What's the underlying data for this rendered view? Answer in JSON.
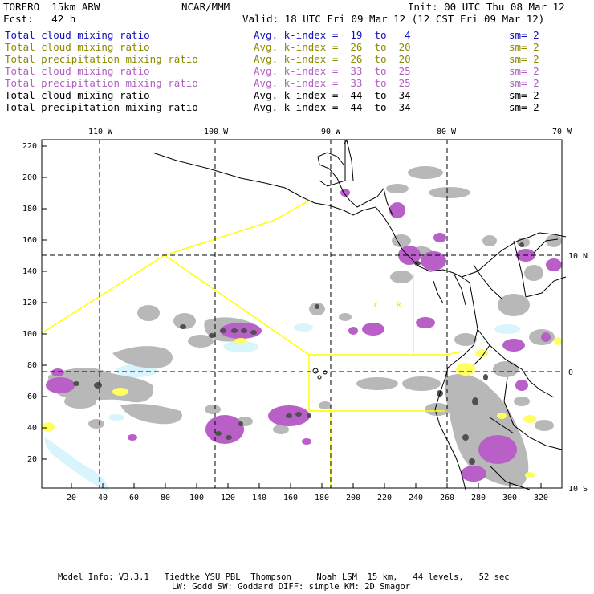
{
  "header": {
    "model": "TORERO  15km ARW",
    "org": "NCAR/MMM",
    "init": "Init: 00 UTC Thu 08 Mar 12",
    "fcst": "Fcst:   42 h",
    "valid": "Valid: 18 UTC Fri 09 Mar 12 (12 CST Fri 09 Mar 12)"
  },
  "legend": [
    {
      "field": "Total cloud mixing ratio",
      "index": "Avg. k-index =  19  to   4",
      "sm": "sm= 2",
      "color": "#1010c0"
    },
    {
      "field": "Total cloud mixing ratio",
      "index": "Avg. k-index =  26  to  20",
      "sm": "sm= 2",
      "color": "#8a8a00"
    },
    {
      "field": "Total precipitation mixing ratio",
      "index": "Avg. k-index =  26  to  20",
      "sm": "sm= 2",
      "color": "#8a8a00"
    },
    {
      "field": "Total cloud mixing ratio",
      "index": "Avg. k-index =  33  to  25",
      "sm": "sm= 2",
      "color": "#b060c0"
    },
    {
      "field": "Total precipitation mixing ratio",
      "index": "Avg. k-index =  33  to  25",
      "sm": "sm= 2",
      "color": "#b060c0"
    },
    {
      "field": "Total cloud mixing ratio",
      "index": "Avg. k-index =  44  to  34",
      "sm": "sm= 2",
      "color": "#000000"
    },
    {
      "field": "Total precipitation mixing ratio",
      "index": "Avg. k-index =  44  to  34",
      "sm": "sm= 2",
      "color": "#000000"
    }
  ],
  "map": {
    "lon_labels": [
      "110 W",
      "100 W",
      "90 W",
      "80 W",
      "70 W"
    ],
    "lat_labels": [
      "10 N",
      "0",
      "10 S"
    ],
    "y_ticks": [
      "220",
      "200",
      "180",
      "160",
      "140",
      "120",
      "100",
      "80",
      "60",
      "40",
      "20"
    ],
    "x_ticks": [
      "20",
      "40",
      "60",
      "80",
      "100",
      "120",
      "140",
      "160",
      "180",
      "200",
      "220",
      "240",
      "260",
      "280",
      "300",
      "320"
    ],
    "region_labels": [
      "1",
      "C",
      "R"
    ],
    "colors": {
      "grey": "#b8b8b8",
      "dark": "#505050",
      "purple": "#b860c8",
      "yellow": "#ffff60",
      "cyan": "#d8f4fc",
      "boundary": "#ffff00"
    }
  },
  "footer": {
    "line1": "Model Info: V3.3.1   Tiedtke YSU PBL  Thompson     Noah LSM  15 km,   44 levels,   52 sec",
    "line2": "LW: Godd SW: Goddard DIFF: simple KM: 2D Smagor"
  }
}
